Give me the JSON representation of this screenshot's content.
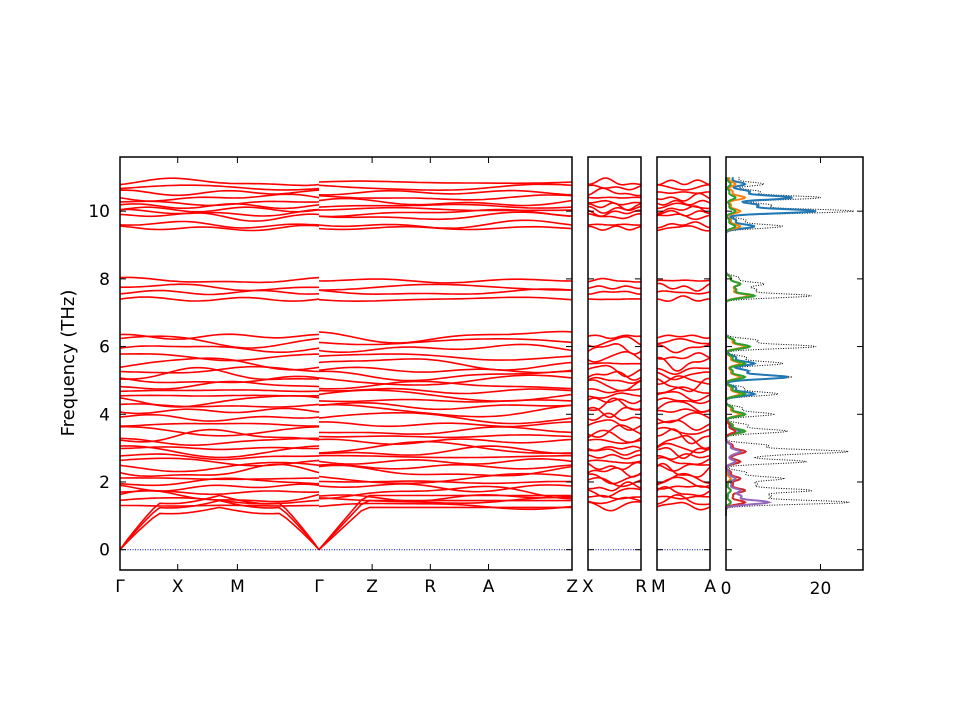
{
  "chart_data": {
    "type": "line",
    "ylabel": "Frequency (THz)",
    "ylim": [
      -0.6,
      11.6
    ],
    "yticks": [
      0,
      2,
      4,
      6,
      8,
      10
    ],
    "grid": false,
    "band_color": "#ff0000",
    "zero_line_color": "#0000aa",
    "panels": [
      {
        "name": "segment-1",
        "ticks": [
          "Γ",
          "X",
          "M",
          "Γ"
        ],
        "tick_positions": [
          0,
          0.29,
          0.59,
          1.0
        ],
        "xrange": [
          0,
          1.0
        ]
      },
      {
        "name": "segment-2",
        "ticks": [
          "Γ",
          "Z",
          "R",
          "A",
          "Z"
        ],
        "tick_positions": [
          0,
          0.21,
          0.44,
          0.67,
          1.0
        ],
        "xrange": [
          0,
          1.0
        ]
      },
      {
        "name": "segment-3",
        "ticks": [
          "X",
          "R"
        ],
        "tick_positions": [
          0,
          1.0
        ],
        "xrange": [
          0,
          1.0
        ]
      },
      {
        "name": "segment-4",
        "ticks": [
          "M",
          "A"
        ],
        "tick_positions": [
          0,
          1.0
        ],
        "xrange": [
          0,
          1.0
        ]
      }
    ],
    "band_levels": [
      1.3,
      1.45,
      1.55,
      1.7,
      1.85,
      2.0,
      2.1,
      2.3,
      2.45,
      2.6,
      2.75,
      2.9,
      3.0,
      3.2,
      3.35,
      3.5,
      3.7,
      3.9,
      4.1,
      4.25,
      4.4,
      4.55,
      4.7,
      4.85,
      5.0,
      5.15,
      5.3,
      5.5,
      5.7,
      5.95,
      6.15,
      6.3,
      7.4,
      7.6,
      7.75,
      7.95,
      9.5,
      9.6,
      9.85,
      9.95,
      10.05,
      10.15,
      10.25,
      10.4,
      10.55,
      10.7,
      10.85
    ],
    "dos": {
      "xlim": [
        0,
        29
      ],
      "xticks": [
        0,
        20
      ],
      "series": [
        {
          "name": "total",
          "color": "#000000",
          "style": "dotted"
        },
        {
          "name": "projection-1",
          "color": "#1f77b4"
        },
        {
          "name": "projection-2",
          "color": "#ff7f0e"
        },
        {
          "name": "projection-3",
          "color": "#2ca02c"
        },
        {
          "name": "projection-4",
          "color": "#d62728"
        },
        {
          "name": "projection-5",
          "color": "#9467bd"
        }
      ],
      "peaks": [
        {
          "f": 10.0,
          "total": 27,
          "p1": 19,
          "p2": 3,
          "p3": 2
        },
        {
          "f": 10.4,
          "total": 20,
          "p1": 14,
          "p2": 4,
          "p3": 2
        },
        {
          "f": 9.55,
          "total": 12,
          "p1": 6,
          "p2": 3,
          "p3": 2
        },
        {
          "f": 10.8,
          "total": 8,
          "p1": 4,
          "p2": 2,
          "p3": 1
        },
        {
          "f": 7.5,
          "total": 18,
          "p1": 5,
          "p2": 5,
          "p3": 6
        },
        {
          "f": 7.85,
          "total": 8,
          "p1": 3,
          "p2": 3,
          "p3": 3
        },
        {
          "f": 6.0,
          "total": 19,
          "p1": 5,
          "p2": 4,
          "p3": 5
        },
        {
          "f": 5.5,
          "total": 12,
          "p1": 6,
          "p2": 3,
          "p3": 4
        },
        {
          "f": 5.1,
          "total": 14,
          "p1": 13,
          "p2": 3,
          "p3": 4
        },
        {
          "f": 4.6,
          "total": 11,
          "p1": 6,
          "p2": 3,
          "p3": 4
        },
        {
          "f": 4.0,
          "total": 10,
          "p1": 4,
          "p2": 3,
          "p3": 4
        },
        {
          "f": 3.5,
          "total": 13,
          "p1": 3,
          "p2": 4,
          "p3": 4,
          "p4": 2
        },
        {
          "f": 2.9,
          "total": 25,
          "p1": 3,
          "p2": 3,
          "p3": 3,
          "p4": 4,
          "p5": 3
        },
        {
          "f": 2.6,
          "total": 17,
          "p1": 2,
          "p2": 2,
          "p3": 3,
          "p4": 3,
          "p5": 2
        },
        {
          "f": 2.1,
          "total": 12,
          "p1": 1,
          "p2": 1,
          "p3": 2,
          "p4": 3,
          "p5": 2
        },
        {
          "f": 1.75,
          "total": 18,
          "p1": 1,
          "p2": 1,
          "p3": 1,
          "p4": 4,
          "p5": 3
        },
        {
          "f": 1.4,
          "total": 26,
          "p1": 1,
          "p2": 1,
          "p3": 1,
          "p4": 4,
          "p5": 9
        }
      ]
    }
  }
}
